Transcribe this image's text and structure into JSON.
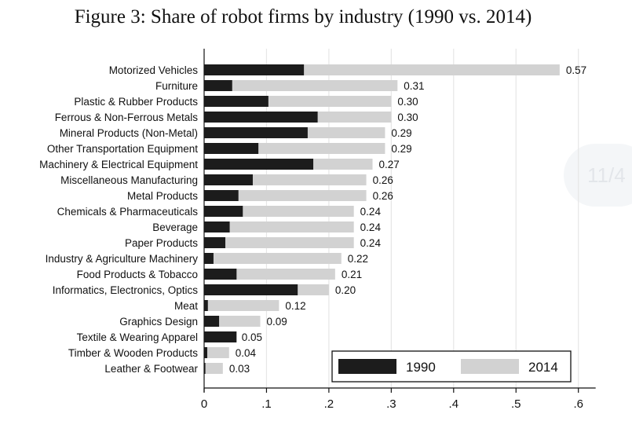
{
  "title": "Figure 3: Share of robot firms by industry (1990 vs. 2014)",
  "watermark_text": "11/4",
  "chart_data": {
    "type": "bar",
    "orientation": "horizontal",
    "categories": [
      "Motorized Vehicles",
      "Furniture",
      "Plastic & Rubber Products",
      "Ferrous & Non-Ferrous Metals",
      "Mineral Products (Non-Metal)",
      "Other Transportation Equipment",
      "Machinery & Electrical Equipment",
      "Miscellaneous Manufacturing",
      "Metal Products",
      "Chemicals & Pharmaceuticals",
      "Beverage",
      "Paper Products",
      "Industry & Agriculture Machinery",
      "Food Products & Tobacco",
      "Informatics, Electronics, Optics",
      "Meat",
      "Graphics Design",
      "Textile & Wearing Apparel",
      "Timber & Wooden Products",
      "Leather & Footwear"
    ],
    "series": [
      {
        "name": "1990",
        "color": "#1c1c1c",
        "values": [
          0.16,
          0.045,
          0.103,
          0.182,
          0.166,
          0.087,
          0.175,
          0.078,
          0.055,
          0.062,
          0.041,
          0.034,
          0.015,
          0.052,
          0.15,
          0.006,
          0.024,
          0.052,
          0.005,
          0.002
        ]
      },
      {
        "name": "2014",
        "color": "#d2d2d2",
        "values": [
          0.57,
          0.31,
          0.3,
          0.3,
          0.29,
          0.29,
          0.27,
          0.26,
          0.26,
          0.24,
          0.24,
          0.24,
          0.22,
          0.21,
          0.2,
          0.12,
          0.09,
          0.05,
          0.04,
          0.03
        ]
      }
    ],
    "value_labels": [
      "0.57",
      "0.31",
      "0.30",
      "0.30",
      "0.29",
      "0.29",
      "0.27",
      "0.26",
      "0.26",
      "0.24",
      "0.24",
      "0.24",
      "0.22",
      "0.21",
      "0.20",
      "0.12",
      "0.09",
      "0.05",
      "0.04",
      "0.03"
    ],
    "xlim": [
      0,
      0.6
    ],
    "xticks": [
      0,
      0.1,
      0.2,
      0.3,
      0.4,
      0.5,
      0.6
    ],
    "xtick_labels": [
      "0",
      ".1",
      ".2",
      ".3",
      ".4",
      ".5",
      ".6"
    ],
    "grid": true,
    "legend_position": "bottom-right inside",
    "legend": [
      {
        "label": "1990",
        "color": "#1c1c1c"
      },
      {
        "label": "2014",
        "color": "#d2d2d2"
      }
    ],
    "xlabel": "",
    "ylabel": ""
  }
}
